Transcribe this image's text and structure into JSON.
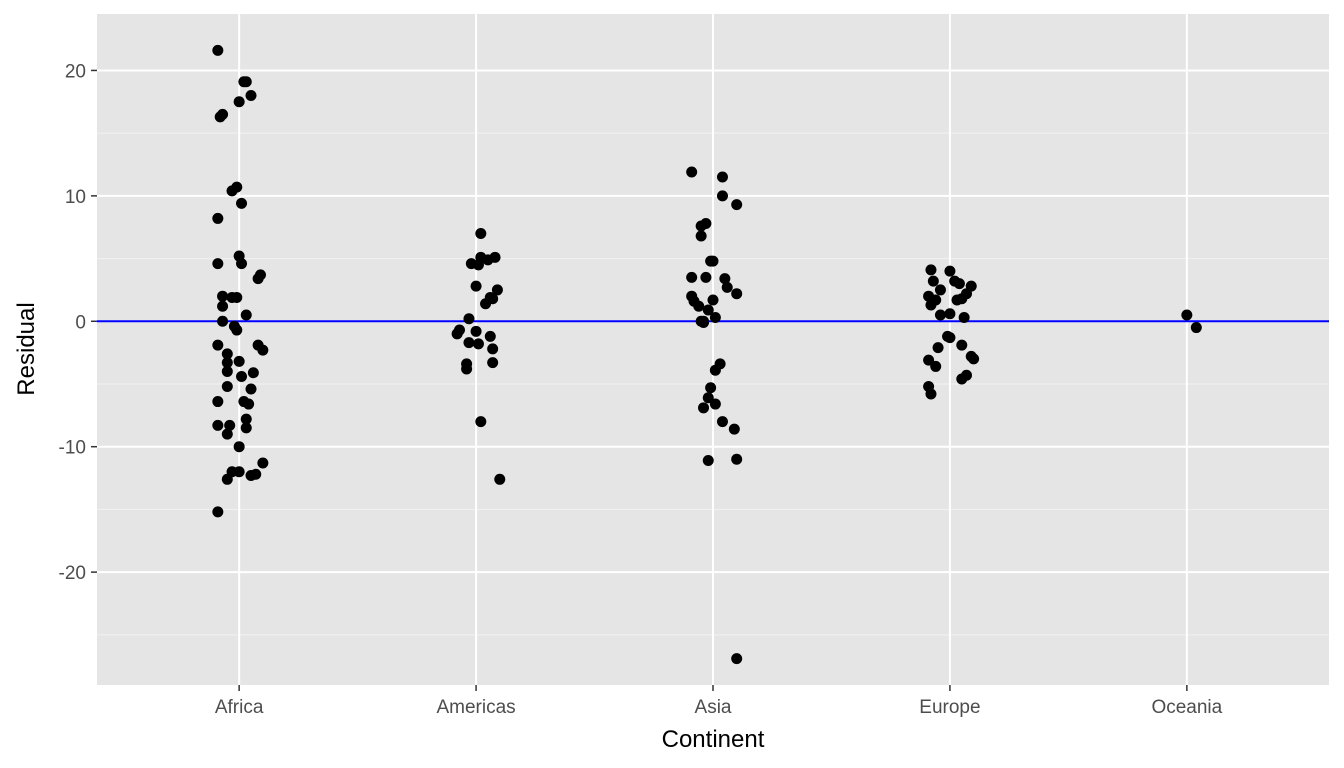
{
  "chart_data": {
    "type": "scatter",
    "title": "",
    "xlabel": "Continent",
    "ylabel": "Residual",
    "categories": [
      "Africa",
      "Americas",
      "Asia",
      "Europe",
      "Oceania"
    ],
    "ylim": [
      -29,
      24.5
    ],
    "yticks": [
      -20,
      -10,
      0,
      10,
      20
    ],
    "yticklabels": [
      "-20",
      "-10",
      "0",
      "10",
      "20"
    ],
    "grid": true,
    "legend": "none",
    "reference_line": {
      "y": 0,
      "color": "#0000ff"
    },
    "colors": {
      "panel": "#e5e5e5",
      "grid_major": "#ffffff",
      "grid_minor": "#f2f2f2",
      "points": "#000000",
      "reference_line": "#0000ff"
    },
    "points": [
      {
        "x": "Africa",
        "offset": -0.09,
        "y": 21.6
      },
      {
        "x": "Africa",
        "offset": 0.02,
        "y": 19.1
      },
      {
        "x": "Africa",
        "offset": 0.03,
        "y": 19.1
      },
      {
        "x": "Africa",
        "offset": 0.05,
        "y": 18.0
      },
      {
        "x": "Africa",
        "offset": 0.0,
        "y": 17.5
      },
      {
        "x": "Africa",
        "offset": -0.08,
        "y": 16.3
      },
      {
        "x": "Africa",
        "offset": -0.07,
        "y": 16.5
      },
      {
        "x": "Africa",
        "offset": -0.03,
        "y": 10.4
      },
      {
        "x": "Africa",
        "offset": -0.01,
        "y": 10.7
      },
      {
        "x": "Africa",
        "offset": -0.09,
        "y": 8.2
      },
      {
        "x": "Africa",
        "offset": 0.01,
        "y": 9.4
      },
      {
        "x": "Africa",
        "offset": 0.0,
        "y": 5.2
      },
      {
        "x": "Africa",
        "offset": -0.09,
        "y": 4.6
      },
      {
        "x": "Africa",
        "offset": 0.01,
        "y": 4.6
      },
      {
        "x": "Africa",
        "offset": 0.09,
        "y": 3.7
      },
      {
        "x": "Africa",
        "offset": 0.08,
        "y": 3.4
      },
      {
        "x": "Africa",
        "offset": -0.07,
        "y": 2.0
      },
      {
        "x": "Africa",
        "offset": -0.03,
        "y": 1.9
      },
      {
        "x": "Africa",
        "offset": -0.01,
        "y": 1.9
      },
      {
        "x": "Africa",
        "offset": -0.07,
        "y": 1.2
      },
      {
        "x": "Africa",
        "offset": 0.03,
        "y": 0.5
      },
      {
        "x": "Africa",
        "offset": -0.07,
        "y": 0.0
      },
      {
        "x": "Africa",
        "offset": -0.02,
        "y": -0.4
      },
      {
        "x": "Africa",
        "offset": -0.01,
        "y": -0.7
      },
      {
        "x": "Africa",
        "offset": -0.09,
        "y": -1.9
      },
      {
        "x": "Africa",
        "offset": 0.08,
        "y": -1.9
      },
      {
        "x": "Africa",
        "offset": 0.1,
        "y": -2.3
      },
      {
        "x": "Africa",
        "offset": -0.05,
        "y": -2.6
      },
      {
        "x": "Africa",
        "offset": -0.05,
        "y": -3.3
      },
      {
        "x": "Africa",
        "offset": 0.0,
        "y": -3.2
      },
      {
        "x": "Africa",
        "offset": -0.05,
        "y": -4.0
      },
      {
        "x": "Africa",
        "offset": 0.06,
        "y": -4.1
      },
      {
        "x": "Africa",
        "offset": 0.01,
        "y": -4.4
      },
      {
        "x": "Africa",
        "offset": -0.05,
        "y": -5.2
      },
      {
        "x": "Africa",
        "offset": 0.05,
        "y": -5.4
      },
      {
        "x": "Africa",
        "offset": -0.09,
        "y": -6.4
      },
      {
        "x": "Africa",
        "offset": 0.02,
        "y": -6.4
      },
      {
        "x": "Africa",
        "offset": 0.04,
        "y": -6.6
      },
      {
        "x": "Africa",
        "offset": 0.03,
        "y": -7.8
      },
      {
        "x": "Africa",
        "offset": -0.09,
        "y": -8.3
      },
      {
        "x": "Africa",
        "offset": -0.04,
        "y": -8.3
      },
      {
        "x": "Africa",
        "offset": 0.03,
        "y": -8.5
      },
      {
        "x": "Africa",
        "offset": -0.05,
        "y": -9.0
      },
      {
        "x": "Africa",
        "offset": 0.0,
        "y": -10.0
      },
      {
        "x": "Africa",
        "offset": 0.1,
        "y": -11.3
      },
      {
        "x": "Africa",
        "offset": -0.03,
        "y": -12.0
      },
      {
        "x": "Africa",
        "offset": 0.0,
        "y": -12.0
      },
      {
        "x": "Africa",
        "offset": 0.07,
        "y": -12.2
      },
      {
        "x": "Africa",
        "offset": 0.05,
        "y": -12.3
      },
      {
        "x": "Africa",
        "offset": -0.05,
        "y": -12.6
      },
      {
        "x": "Africa",
        "offset": -0.09,
        "y": -15.2
      },
      {
        "x": "Americas",
        "offset": 0.02,
        "y": 7.0
      },
      {
        "x": "Americas",
        "offset": 0.02,
        "y": 5.1
      },
      {
        "x": "Americas",
        "offset": 0.08,
        "y": 5.1
      },
      {
        "x": "Americas",
        "offset": 0.05,
        "y": 4.9
      },
      {
        "x": "Americas",
        "offset": -0.02,
        "y": 4.6
      },
      {
        "x": "Americas",
        "offset": 0.01,
        "y": 4.5
      },
      {
        "x": "Americas",
        "offset": 0.0,
        "y": 2.8
      },
      {
        "x": "Americas",
        "offset": 0.09,
        "y": 2.5
      },
      {
        "x": "Americas",
        "offset": 0.06,
        "y": 1.9
      },
      {
        "x": "Americas",
        "offset": 0.07,
        "y": 1.8
      },
      {
        "x": "Americas",
        "offset": 0.04,
        "y": 1.4
      },
      {
        "x": "Americas",
        "offset": -0.03,
        "y": 0.2
      },
      {
        "x": "Americas",
        "offset": -0.07,
        "y": -0.7
      },
      {
        "x": "Americas",
        "offset": -0.08,
        "y": -1.0
      },
      {
        "x": "Americas",
        "offset": 0.0,
        "y": -0.8
      },
      {
        "x": "Americas",
        "offset": 0.06,
        "y": -1.2
      },
      {
        "x": "Americas",
        "offset": -0.03,
        "y": -1.7
      },
      {
        "x": "Americas",
        "offset": 0.01,
        "y": -1.8
      },
      {
        "x": "Americas",
        "offset": 0.07,
        "y": -2.2
      },
      {
        "x": "Americas",
        "offset": -0.04,
        "y": -3.4
      },
      {
        "x": "Americas",
        "offset": -0.04,
        "y": -3.8
      },
      {
        "x": "Americas",
        "offset": 0.07,
        "y": -3.3
      },
      {
        "x": "Americas",
        "offset": 0.02,
        "y": -8.0
      },
      {
        "x": "Americas",
        "offset": 0.1,
        "y": -12.6
      },
      {
        "x": "Asia",
        "offset": -0.09,
        "y": 11.9
      },
      {
        "x": "Asia",
        "offset": 0.04,
        "y": 11.5
      },
      {
        "x": "Asia",
        "offset": 0.04,
        "y": 10.0
      },
      {
        "x": "Asia",
        "offset": 0.1,
        "y": 9.3
      },
      {
        "x": "Asia",
        "offset": -0.05,
        "y": 7.6
      },
      {
        "x": "Asia",
        "offset": -0.03,
        "y": 7.8
      },
      {
        "x": "Asia",
        "offset": -0.05,
        "y": 6.8
      },
      {
        "x": "Asia",
        "offset": -0.01,
        "y": 4.8
      },
      {
        "x": "Asia",
        "offset": 0.0,
        "y": 4.8
      },
      {
        "x": "Asia",
        "offset": -0.09,
        "y": 3.5
      },
      {
        "x": "Asia",
        "offset": -0.03,
        "y": 3.5
      },
      {
        "x": "Asia",
        "offset": 0.05,
        "y": 3.4
      },
      {
        "x": "Asia",
        "offset": 0.06,
        "y": 2.7
      },
      {
        "x": "Asia",
        "offset": 0.1,
        "y": 2.2
      },
      {
        "x": "Asia",
        "offset": -0.09,
        "y": 2.0
      },
      {
        "x": "Asia",
        "offset": -0.08,
        "y": 1.6
      },
      {
        "x": "Asia",
        "offset": 0.0,
        "y": 1.7
      },
      {
        "x": "Asia",
        "offset": -0.06,
        "y": 1.2
      },
      {
        "x": "Asia",
        "offset": -0.02,
        "y": 0.9
      },
      {
        "x": "Asia",
        "offset": 0.01,
        "y": 0.3
      },
      {
        "x": "Asia",
        "offset": -0.05,
        "y": 0.0
      },
      {
        "x": "Asia",
        "offset": -0.04,
        "y": -0.1
      },
      {
        "x": "Asia",
        "offset": -0.04,
        "y": 0.0
      },
      {
        "x": "Asia",
        "offset": 0.03,
        "y": -3.4
      },
      {
        "x": "Asia",
        "offset": 0.01,
        "y": -3.9
      },
      {
        "x": "Asia",
        "offset": -0.01,
        "y": -5.3
      },
      {
        "x": "Asia",
        "offset": -0.02,
        "y": -6.1
      },
      {
        "x": "Asia",
        "offset": 0.01,
        "y": -6.6
      },
      {
        "x": "Asia",
        "offset": -0.04,
        "y": -6.9
      },
      {
        "x": "Asia",
        "offset": 0.04,
        "y": -8.0
      },
      {
        "x": "Asia",
        "offset": 0.09,
        "y": -8.6
      },
      {
        "x": "Asia",
        "offset": -0.02,
        "y": -11.1
      },
      {
        "x": "Asia",
        "offset": 0.1,
        "y": -11.0
      },
      {
        "x": "Asia",
        "offset": 0.1,
        "y": -26.9
      },
      {
        "x": "Europe",
        "offset": -0.08,
        "y": 4.1
      },
      {
        "x": "Europe",
        "offset": 0.0,
        "y": 4.0
      },
      {
        "x": "Europe",
        "offset": -0.07,
        "y": 3.2
      },
      {
        "x": "Europe",
        "offset": 0.02,
        "y": 3.2
      },
      {
        "x": "Europe",
        "offset": 0.04,
        "y": 3.0
      },
      {
        "x": "Europe",
        "offset": 0.09,
        "y": 2.8
      },
      {
        "x": "Europe",
        "offset": -0.04,
        "y": 2.5
      },
      {
        "x": "Europe",
        "offset": 0.07,
        "y": 2.2
      },
      {
        "x": "Europe",
        "offset": -0.09,
        "y": 2.0
      },
      {
        "x": "Europe",
        "offset": -0.06,
        "y": 1.7
      },
      {
        "x": "Europe",
        "offset": 0.03,
        "y": 1.7
      },
      {
        "x": "Europe",
        "offset": 0.05,
        "y": 1.8
      },
      {
        "x": "Europe",
        "offset": -0.08,
        "y": 1.3
      },
      {
        "x": "Europe",
        "offset": -0.04,
        "y": 0.5
      },
      {
        "x": "Europe",
        "offset": 0.0,
        "y": 0.6
      },
      {
        "x": "Europe",
        "offset": 0.06,
        "y": 0.3
      },
      {
        "x": "Europe",
        "offset": -0.01,
        "y": -1.2
      },
      {
        "x": "Europe",
        "offset": 0.0,
        "y": -1.3
      },
      {
        "x": "Europe",
        "offset": -0.05,
        "y": -2.1
      },
      {
        "x": "Europe",
        "offset": 0.05,
        "y": -1.9
      },
      {
        "x": "Europe",
        "offset": 0.09,
        "y": -2.8
      },
      {
        "x": "Europe",
        "offset": 0.1,
        "y": -3.0
      },
      {
        "x": "Europe",
        "offset": -0.09,
        "y": -3.1
      },
      {
        "x": "Europe",
        "offset": -0.06,
        "y": -3.6
      },
      {
        "x": "Europe",
        "offset": 0.07,
        "y": -4.3
      },
      {
        "x": "Europe",
        "offset": 0.05,
        "y": -4.6
      },
      {
        "x": "Europe",
        "offset": -0.09,
        "y": -5.2
      },
      {
        "x": "Europe",
        "offset": -0.08,
        "y": -5.8
      },
      {
        "x": "Oceania",
        "offset": 0.0,
        "y": 0.5
      },
      {
        "x": "Oceania",
        "offset": 0.04,
        "y": -0.5
      }
    ]
  }
}
